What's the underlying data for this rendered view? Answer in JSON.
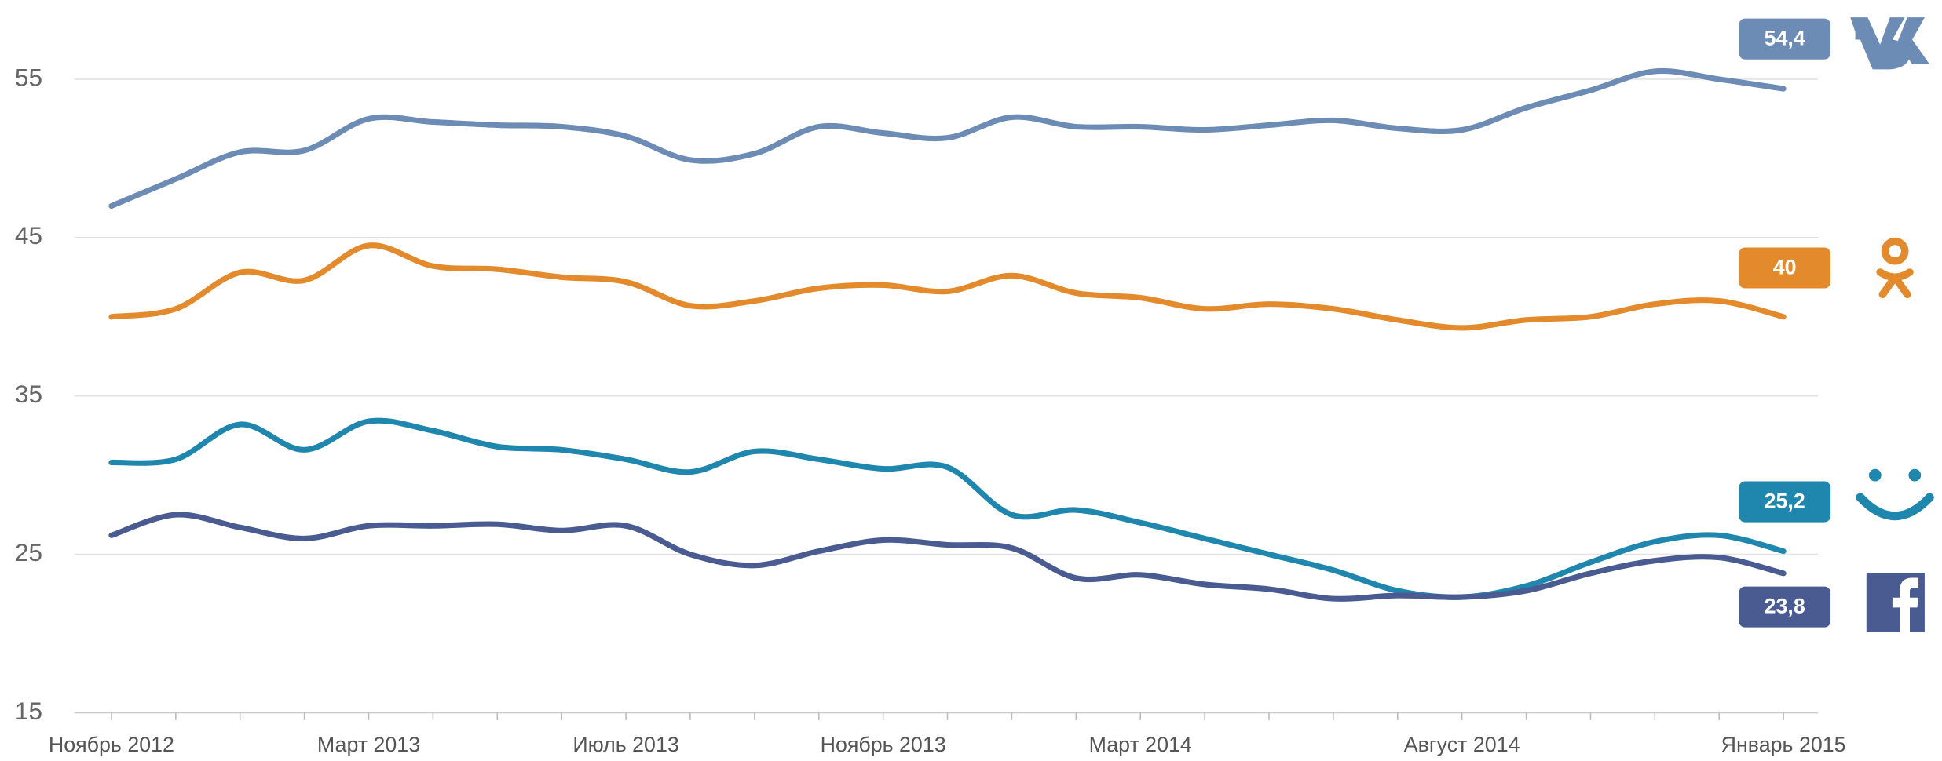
{
  "chart_data": {
    "type": "line",
    "categories": [
      "Ноябрь 2012",
      null,
      null,
      null,
      "Март 2013",
      null,
      null,
      null,
      "Июль 2013",
      null,
      null,
      null,
      "Ноябрь 2013",
      null,
      null,
      null,
      "Март 2014",
      null,
      null,
      null,
      null,
      "Август 2014",
      null,
      null,
      null,
      null,
      "Январь 2015"
    ],
    "ylim": [
      15,
      57
    ],
    "yticks": [
      15,
      25,
      35,
      45,
      55
    ],
    "grid": true,
    "series": [
      {
        "color": "#6d8cb5",
        "values": [
          47.0,
          48.7,
          50.4,
          50.5,
          52.5,
          52.3,
          52.1,
          52.0,
          51.4,
          49.9,
          50.3,
          52.0,
          51.6,
          51.3,
          52.6,
          52.0,
          52.0,
          51.8,
          52.1,
          52.4,
          51.9,
          51.8,
          53.2,
          54.3,
          55.5,
          55.0,
          54.4
        ],
        "value_labels": [
          null,
          null,
          null,
          null,
          null,
          null,
          null,
          null,
          null,
          null,
          null,
          null,
          null,
          null,
          null,
          null,
          null,
          null,
          null,
          null,
          null,
          null,
          null,
          null,
          null,
          null,
          "54,4"
        ]
      },
      {
        "color": "#e38b2c",
        "values": [
          40.0,
          40.5,
          42.8,
          42.3,
          44.5,
          43.2,
          43.0,
          42.5,
          42.2,
          40.7,
          41.0,
          41.8,
          42.0,
          41.6,
          42.6,
          41.5,
          41.2,
          40.5,
          40.8,
          40.5,
          39.8,
          39.3,
          39.8,
          40.0,
          40.8,
          41.0,
          40.0
        ],
        "value_labels": [
          null,
          null,
          null,
          null,
          null,
          null,
          null,
          null,
          null,
          null,
          null,
          null,
          null,
          null,
          null,
          null,
          null,
          null,
          null,
          null,
          null,
          null,
          null,
          null,
          null,
          null,
          "40"
        ]
      },
      {
        "color": "#1f86ad",
        "values": [
          30.8,
          31.0,
          33.2,
          31.6,
          33.4,
          32.8,
          31.8,
          31.6,
          31.0,
          30.2,
          31.5,
          31.0,
          30.4,
          30.5,
          27.5,
          27.8,
          27.0,
          26.0,
          25.0,
          24.0,
          22.7,
          22.3,
          23.0,
          24.5,
          25.8,
          26.2,
          25.2
        ],
        "value_labels": [
          null,
          null,
          null,
          null,
          null,
          null,
          null,
          null,
          null,
          null,
          null,
          null,
          null,
          null,
          null,
          null,
          null,
          null,
          null,
          null,
          null,
          null,
          null,
          null,
          null,
          null,
          "25,2"
        ]
      },
      {
        "color": "#4a5b91",
        "values": [
          26.2,
          27.5,
          26.7,
          26.0,
          26.8,
          26.8,
          26.9,
          26.5,
          26.8,
          25.0,
          24.3,
          25.2,
          25.9,
          25.6,
          25.4,
          23.5,
          23.7,
          23.1,
          22.8,
          22.2,
          22.4,
          22.3,
          22.7,
          23.8,
          24.6,
          24.8,
          23.8
        ],
        "value_labels": [
          null,
          null,
          null,
          null,
          null,
          null,
          null,
          null,
          null,
          null,
          null,
          null,
          null,
          null,
          null,
          null,
          null,
          null,
          null,
          null,
          null,
          null,
          null,
          null,
          null,
          null,
          "23,8"
        ]
      }
    ]
  }
}
